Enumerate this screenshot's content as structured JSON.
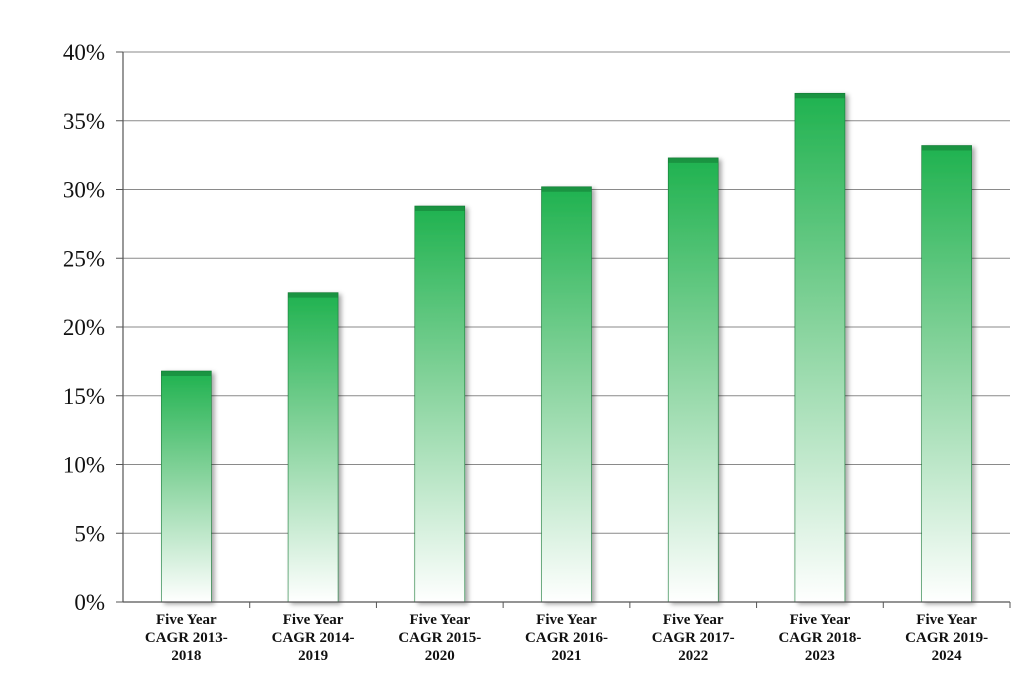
{
  "chart_data": {
    "type": "bar",
    "title": "",
    "xlabel": "",
    "ylabel": "",
    "categories": [
      [
        "Five Year",
        "CAGR 2013-",
        "2018"
      ],
      [
        "Five Year",
        "CAGR 2014-",
        "2019"
      ],
      [
        "Five Year",
        "CAGR 2015-",
        "2020"
      ],
      [
        "Five Year",
        "CAGR 2016-",
        "2021"
      ],
      [
        "Five Year",
        "CAGR 2017-",
        "2022"
      ],
      [
        "Five Year",
        "CAGR 2018-",
        "2023"
      ],
      [
        "Five Year",
        "CAGR 2019-",
        "2024"
      ]
    ],
    "values": [
      16.8,
      22.5,
      28.8,
      30.2,
      32.3,
      37.0,
      33.2
    ],
    "ylim": [
      0,
      40
    ],
    "yticks": [
      "0%",
      "5%",
      "10%",
      "15%",
      "20%",
      "25%",
      "30%",
      "35%",
      "40%"
    ],
    "grid": true,
    "legend": "none",
    "colors": {
      "bar_top": "#1fb24f",
      "bar_bottom": "#ffffff",
      "bar_edge": "#147a36",
      "grid": "#8a8a8a",
      "axis": "#555555"
    }
  }
}
